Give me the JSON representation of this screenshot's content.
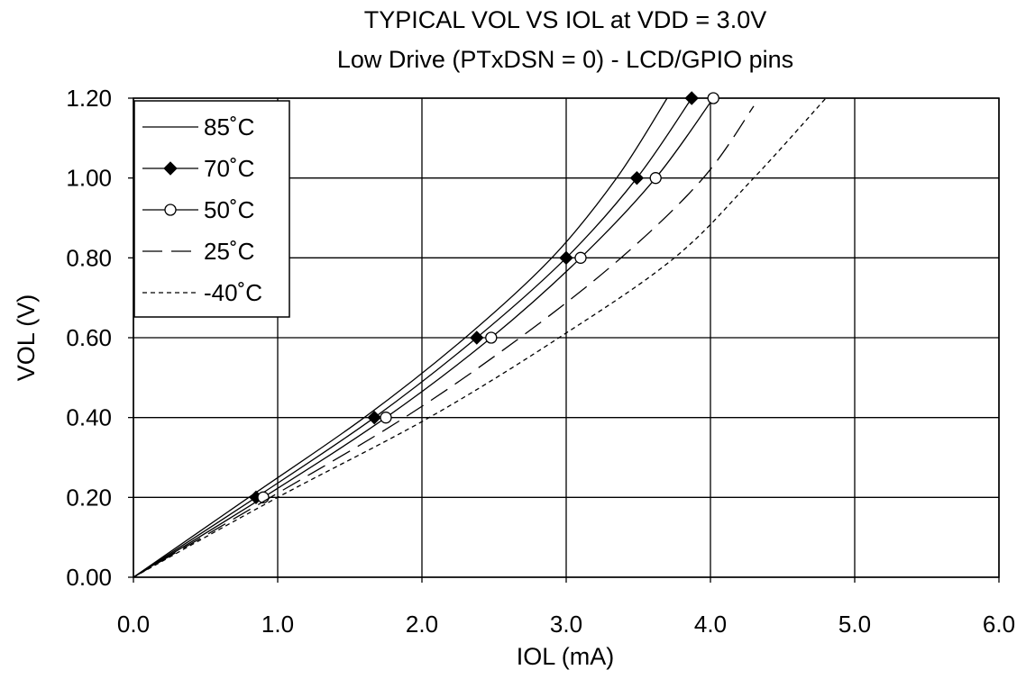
{
  "chart_data": {
    "type": "line",
    "title": "TYPICAL VOL VS IOL at VDD = 3.0V",
    "subtitle": "Low Drive (PTxDSN = 0) - LCD/GPIO pins",
    "xlabel": "IOL (mA)",
    "ylabel": "VOL (V)",
    "xlim": [
      0,
      6
    ],
    "ylim": [
      0,
      1.2
    ],
    "x_ticks": [
      "0.0",
      "1.0",
      "2.0",
      "3.0",
      "4.0",
      "5.0",
      "6.0"
    ],
    "y_ticks": [
      "0.00",
      "0.20",
      "0.40",
      "0.60",
      "0.80",
      "1.00",
      "1.20"
    ],
    "grid": true,
    "legend_position": "top-left",
    "series": [
      {
        "name": "85˚C",
        "style": "solid",
        "marker": "none",
        "x": [
          0,
          0.8,
          1.6,
          2.3,
          2.9,
          3.35,
          3.7
        ],
        "y": [
          0,
          0.2,
          0.4,
          0.6,
          0.8,
          1.0,
          1.2
        ]
      },
      {
        "name": "70˚C",
        "style": "solid",
        "marker": "filled-diamond",
        "x": [
          0,
          0.85,
          1.67,
          2.38,
          3.0,
          3.49,
          3.87
        ],
        "y": [
          0,
          0.2,
          0.4,
          0.6,
          0.8,
          1.0,
          1.2
        ]
      },
      {
        "name": "50˚C",
        "style": "solid",
        "marker": "open-circle",
        "x": [
          0,
          0.9,
          1.75,
          2.48,
          3.1,
          3.62,
          4.02
        ],
        "y": [
          0,
          0.2,
          0.4,
          0.6,
          0.8,
          1.0,
          1.2
        ]
      },
      {
        "name": "25˚C",
        "style": "long-dash",
        "marker": "none",
        "x": [
          0,
          0.95,
          1.88,
          2.68,
          3.38,
          3.95,
          4.3
        ],
        "y": [
          0,
          0.2,
          0.4,
          0.6,
          0.8,
          1.0,
          1.18
        ]
      },
      {
        "name": "-40˚C",
        "style": "short-dash",
        "marker": "none",
        "x": [
          0,
          1.0,
          2.05,
          2.95,
          3.75,
          4.3,
          4.8
        ],
        "y": [
          0,
          0.2,
          0.4,
          0.6,
          0.8,
          1.0,
          1.2
        ]
      }
    ]
  }
}
